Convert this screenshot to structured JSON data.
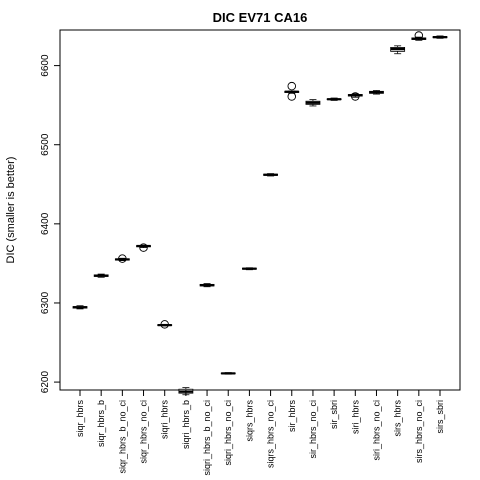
{
  "chart_data": {
    "type": "box",
    "title": "DIC EV71 CA16",
    "xlabel": "",
    "ylabel": "DIC (smaller is better)",
    "ylim": [
      6190,
      6645
    ],
    "y_ticks": [
      6200,
      6300,
      6400,
      6500,
      6600
    ],
    "categories": [
      "siqr_hbrs",
      "siqr_hbrs_b",
      "siqr_hbrs_b_no_ci",
      "siqr_hbrs_no_ci",
      "siqri_hbrs",
      "siqri_hbrs_b",
      "siqri_hbrs_b_no_ci",
      "siqri_hbrs_no_ci",
      "siqrs_hbrs",
      "siqrs_hbrs_no_ci",
      "sir_hbrs",
      "sir_hbrs_no_ci",
      "sir_sbri",
      "siri_hbrs",
      "siri_hbrs_no_ci",
      "sirs_hbrs",
      "sirs_hbrs_no_ci",
      "sirs_sbri"
    ],
    "boxes": [
      {
        "min": 6292.5,
        "q1": 6293.5,
        "median": 6294.5,
        "q3": 6295.5,
        "max": 6296.5,
        "outliers": []
      },
      {
        "min": 6332.5,
        "q1": 6333.5,
        "median": 6334.5,
        "q3": 6335.5,
        "max": 6336.5,
        "outliers": []
      },
      {
        "min": 6353.5,
        "q1": 6354.2,
        "median": 6355,
        "q3": 6355.8,
        "max": 6356.5,
        "outliers": [
          6356
        ]
      },
      {
        "min": 6370,
        "q1": 6371,
        "median": 6372,
        "q3": 6372.5,
        "max": 6373,
        "outliers": [
          6370
        ]
      },
      {
        "min": 6271,
        "q1": 6271.5,
        "median": 6272,
        "q3": 6272.5,
        "max": 6273,
        "outliers": [
          6273
        ]
      },
      {
        "min": 6184,
        "q1": 6186,
        "median": 6188,
        "q3": 6191,
        "max": 6193,
        "outliers": []
      },
      {
        "min": 6320.5,
        "q1": 6321.5,
        "median": 6322.5,
        "q3": 6323.5,
        "max": 6324.5,
        "outliers": []
      },
      {
        "min": 6210,
        "q1": 6210.5,
        "median": 6211,
        "q3": 6211.5,
        "max": 6212,
        "outliers": []
      },
      {
        "min": 6342,
        "q1": 6342.7,
        "median": 6343.3,
        "q3": 6344,
        "max": 6344.5,
        "outliers": []
      },
      {
        "min": 6460.5,
        "q1": 6461.3,
        "median": 6462,
        "q3": 6462.8,
        "max": 6463.5,
        "outliers": []
      },
      {
        "min": 6565,
        "q1": 6566,
        "median": 6567,
        "q3": 6567.5,
        "max": 6568,
        "outliers": [
          6561,
          6574
        ]
      },
      {
        "min": 6549,
        "q1": 6551,
        "median": 6553,
        "q3": 6555,
        "max": 6557,
        "outliers": []
      },
      {
        "min": 6556,
        "q1": 6557,
        "median": 6557.5,
        "q3": 6558,
        "max": 6559,
        "outliers": []
      },
      {
        "min": 6560,
        "q1": 6561.5,
        "median": 6562.5,
        "q3": 6563.5,
        "max": 6564.5,
        "outliers": [
          6561
        ]
      },
      {
        "min": 6564,
        "q1": 6565,
        "median": 6566,
        "q3": 6567.5,
        "max": 6568.5,
        "outliers": []
      },
      {
        "min": 6615,
        "q1": 6618,
        "median": 6621,
        "q3": 6623,
        "max": 6625,
        "outliers": []
      },
      {
        "min": 6632,
        "q1": 6633,
        "median": 6634,
        "q3": 6635,
        "max": 6636,
        "outliers": [
          6638
        ]
      },
      {
        "min": 6634.5,
        "q1": 6635.2,
        "median": 6636,
        "q3": 6636.7,
        "max": 6637.5,
        "outliers": []
      }
    ]
  }
}
